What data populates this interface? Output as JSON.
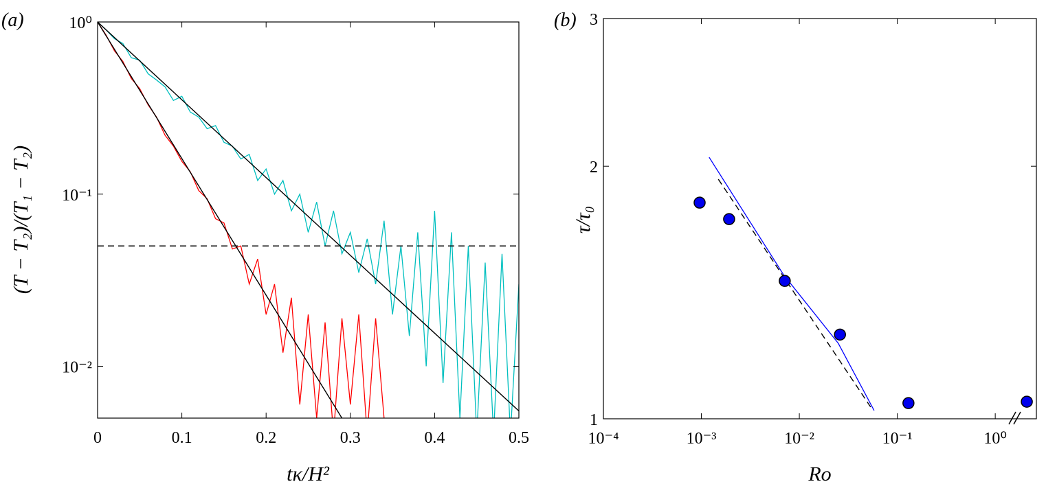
{
  "chart_data": [
    {
      "type": "line",
      "panel_label": "(a)",
      "x_label": "tκ/H²",
      "y_label": "(T − T₂)/(T₁ − T₂)",
      "xlim": [
        0,
        0.5
      ],
      "ylim": [
        0.005,
        1
      ],
      "ylog": true,
      "xticks": [
        0,
        0.1,
        0.2,
        0.3,
        0.4,
        0.5
      ],
      "yticks": [
        {
          "value": 0.01,
          "label": "10⁻²"
        },
        {
          "value": 0.1,
          "label": "10⁻¹"
        },
        {
          "value": 1,
          "label": "10⁰"
        }
      ],
      "series": [
        {
          "color": "#00bfbf",
          "style": "line",
          "x": [
            0,
            0.01,
            0.02,
            0.03,
            0.04,
            0.05,
            0.06,
            0.07,
            0.08,
            0.09,
            0.1,
            0.11,
            0.12,
            0.13,
            0.14,
            0.15,
            0.16,
            0.17,
            0.18,
            0.19,
            0.2,
            0.21,
            0.22,
            0.23,
            0.24,
            0.25,
            0.26,
            0.27,
            0.28,
            0.29,
            0.3,
            0.31,
            0.32,
            0.33,
            0.34,
            0.35,
            0.36,
            0.37,
            0.38,
            0.39,
            0.4,
            0.41,
            0.42,
            0.43,
            0.44,
            0.45,
            0.46,
            0.47,
            0.48,
            0.49,
            0.5
          ],
          "values": [
            1,
            0.9,
            0.8,
            0.75,
            0.62,
            0.6,
            0.5,
            0.46,
            0.42,
            0.35,
            0.37,
            0.3,
            0.28,
            0.24,
            0.25,
            0.2,
            0.19,
            0.16,
            0.17,
            0.12,
            0.14,
            0.1,
            0.12,
            0.08,
            0.1,
            0.06,
            0.09,
            0.05,
            0.08,
            0.045,
            0.06,
            0.035,
            0.055,
            0.03,
            0.07,
            0.02,
            0.05,
            0.015,
            0.06,
            0.01,
            0.08,
            0.008,
            0.06,
            0.005,
            0.05,
            0.004,
            0.04,
            0.004,
            0.045,
            0.004,
            0.03
          ]
        },
        {
          "color": "#ff0000",
          "style": "line",
          "x": [
            0,
            0.01,
            0.02,
            0.03,
            0.04,
            0.05,
            0.06,
            0.07,
            0.08,
            0.09,
            0.1,
            0.11,
            0.12,
            0.13,
            0.14,
            0.15,
            0.16,
            0.17,
            0.18,
            0.19,
            0.2,
            0.21,
            0.22,
            0.23,
            0.24,
            0.25,
            0.26,
            0.27,
            0.28,
            0.29,
            0.3,
            0.31,
            0.32,
            0.33,
            0.34
          ],
          "values": [
            1,
            0.84,
            0.68,
            0.59,
            0.47,
            0.41,
            0.33,
            0.28,
            0.22,
            0.19,
            0.155,
            0.135,
            0.105,
            0.094,
            0.072,
            0.068,
            0.048,
            0.05,
            0.03,
            0.042,
            0.02,
            0.03,
            0.012,
            0.025,
            0.006,
            0.02,
            0.005,
            0.018,
            0.004,
            0.019,
            0.006,
            0.02,
            0.004,
            0.019,
            0.005
          ]
        },
        {
          "color": "#000000",
          "style": "line",
          "x": [
            0,
            0.29
          ],
          "values": [
            1,
            0.005
          ]
        },
        {
          "color": "#000000",
          "style": "line",
          "x": [
            0,
            0.5
          ],
          "values": [
            1,
            0.0055
          ]
        },
        {
          "color": "#000000",
          "style": "dashed",
          "x": [
            0,
            0.5
          ],
          "values": [
            0.05,
            0.05
          ]
        }
      ]
    },
    {
      "type": "scatter",
      "panel_label": "(b)",
      "x_label": "Ro",
      "y_label": "τ/τ₀",
      "xlim": [
        0.0001,
        2.63
      ],
      "ylim": [
        1,
        3
      ],
      "xlog": true,
      "ylog": true,
      "xticks": [
        {
          "value": 0.0001,
          "label": "10⁻⁴"
        },
        {
          "value": 0.001,
          "label": "10⁻³"
        },
        {
          "value": 0.01,
          "label": "10⁻²"
        },
        {
          "value": 0.1,
          "label": "10⁻¹"
        },
        {
          "value": 1,
          "label": "10⁰"
        }
      ],
      "yticks": [
        1,
        2,
        3
      ],
      "series": [
        {
          "color": "#0000ff",
          "style": "line",
          "x": [
            0.0012,
            0.0069,
            0.025,
            0.058
          ],
          "values": [
            2.05,
            1.485,
            1.23,
            1.023
          ]
        },
        {
          "color": "#000000",
          "style": "dashed",
          "x": [
            0.00149,
            0.0546
          ],
          "values": [
            1.93,
            1.029
          ]
        },
        {
          "color": "#0000ee",
          "style": "markers",
          "x": [
            0.00096,
            0.00192,
            0.0071,
            0.026,
            0.13,
            2.1
          ],
          "values": [
            1.81,
            1.73,
            1.46,
            1.26,
            1.044,
            1.048
          ]
        }
      ]
    }
  ]
}
